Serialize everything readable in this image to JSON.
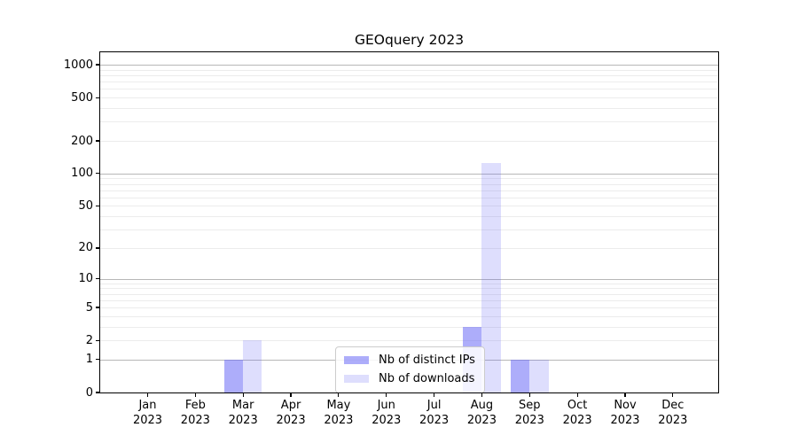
{
  "window": {
    "background": "#ffffff"
  },
  "chart_data": {
    "type": "bar",
    "title": "GEOquery 2023",
    "categories": [
      "Jan 2023",
      "Feb 2023",
      "Mar 2023",
      "Apr 2023",
      "May 2023",
      "Jun 2023",
      "Jul 2023",
      "Aug 2023",
      "Sep 2023",
      "Oct 2023",
      "Nov 2023",
      "Dec 2023"
    ],
    "series": [
      {
        "name": "Nb of distinct IPs",
        "color": "rgba(105,105,245,0.55)",
        "values": [
          0,
          0,
          1,
          0,
          0,
          0,
          0,
          3,
          1,
          0,
          0,
          0
        ]
      },
      {
        "name": "Nb of downloads",
        "color": "rgba(105,105,245,0.22)",
        "values": [
          0,
          0,
          2,
          0,
          0,
          0,
          0,
          125,
          1,
          0,
          0,
          0
        ]
      }
    ],
    "xlabel": "",
    "ylabel": "",
    "yscale": "log1p",
    "yticks": [
      0,
      1,
      2,
      5,
      10,
      20,
      50,
      100,
      200,
      500,
      1000
    ],
    "ylim": [
      0,
      1300
    ],
    "grid": true,
    "legend_position": "bottom-center",
    "colors": {
      "major_grid": "#b7b7b7",
      "minor_grid": "#ececec",
      "axis": "#000000",
      "text": "#000000",
      "legend_border": "#cccccc",
      "legend_background": "rgba(255,255,255,0.85)"
    }
  }
}
